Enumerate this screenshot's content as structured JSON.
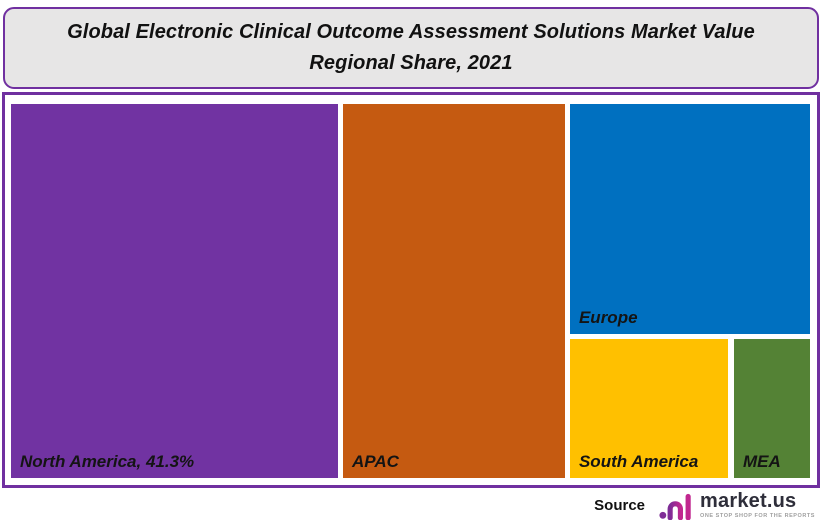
{
  "title": {
    "line1": "Global Electronic Clinical Outcome Assessment Solutions Market Value",
    "line2": "Regional Share, 2021"
  },
  "source": {
    "label": "Source",
    "brand": "market.us",
    "tagline": "ONE STOP SHOP FOR THE REPORTS"
  },
  "colors": {
    "frame_border": "#7030A0",
    "title_background": "#E7E6E6",
    "title_border": "#7030A0",
    "logo_purple": "#7E2C96",
    "logo_magenta": "#C1278F",
    "logo_text": "#2E2E3A",
    "logo_tagline": "#A0A0A0"
  },
  "chart_data": {
    "type": "treemap",
    "title": "Global Electronic Clinical Outcome Assessment Solutions Market Value",
    "subtitle": "Regional Share, 2021",
    "value_format": "percent share",
    "legend": "none",
    "regions": [
      {
        "name": "North America",
        "label": "North America, 41.3%",
        "share_pct": 41.3,
        "share_source": "labeled on chart",
        "color": "#7133A2",
        "rect_pct": {
          "x": 0,
          "y": 0,
          "w": 40.93,
          "h": 100
        }
      },
      {
        "name": "APAC",
        "label": "APAC",
        "share_pct": 28.0,
        "share_source": "estimated from area",
        "color": "#C55A11",
        "rect_pct": {
          "x": 41.55,
          "y": 0,
          "w": 27.78,
          "h": 100
        }
      },
      {
        "name": "Europe",
        "label": "Europe",
        "share_pct": 18.5,
        "share_source": "estimated from area",
        "color": "#0070C0",
        "rect_pct": {
          "x": 69.96,
          "y": 0,
          "w": 30.04,
          "h": 61.39
        }
      },
      {
        "name": "South America",
        "label": "South America",
        "share_pct": 7.4,
        "share_source": "estimated from area",
        "color": "#FFC000",
        "rect_pct": {
          "x": 69.96,
          "y": 62.73,
          "w": 19.77,
          "h": 37.27
        }
      },
      {
        "name": "MEA",
        "label": "MEA",
        "share_pct": 3.6,
        "share_source": "estimated from area",
        "color": "#548235",
        "rect_pct": {
          "x": 90.49,
          "y": 62.73,
          "w": 9.51,
          "h": 37.27
        }
      }
    ]
  }
}
